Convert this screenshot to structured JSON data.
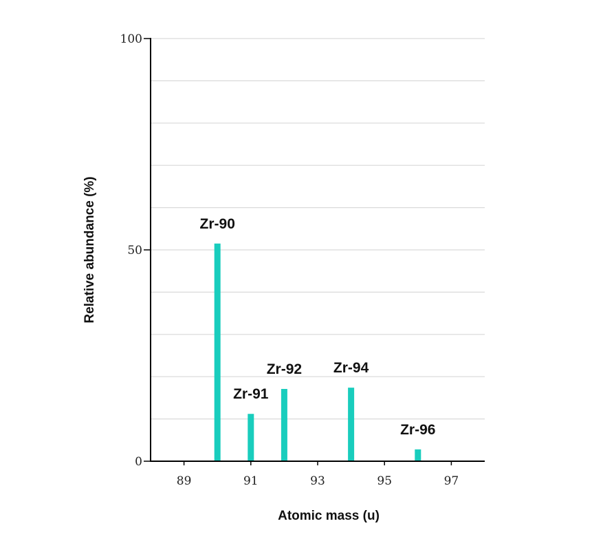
{
  "chart_data": {
    "type": "bar",
    "title": "",
    "xlabel": "Atomic mass (u)",
    "ylabel": "Relative abundance (%)",
    "xlim": [
      88,
      98
    ],
    "ylim": [
      0,
      100
    ],
    "x_ticks": [
      89,
      91,
      93,
      95,
      97
    ],
    "y_ticks": [
      0,
      50,
      100
    ],
    "y_grid_step": 10,
    "grid": true,
    "bar_color": "#19cdbd",
    "bars": [
      {
        "label": "Zr-90",
        "mass": 90,
        "abundance": 51.5
      },
      {
        "label": "Zr-91",
        "mass": 91,
        "abundance": 11.2
      },
      {
        "label": "Zr-92",
        "mass": 92,
        "abundance": 17.1
      },
      {
        "label": "Zr-94",
        "mass": 94,
        "abundance": 17.4
      },
      {
        "label": "Zr-96",
        "mass": 96,
        "abundance": 2.8
      }
    ]
  }
}
